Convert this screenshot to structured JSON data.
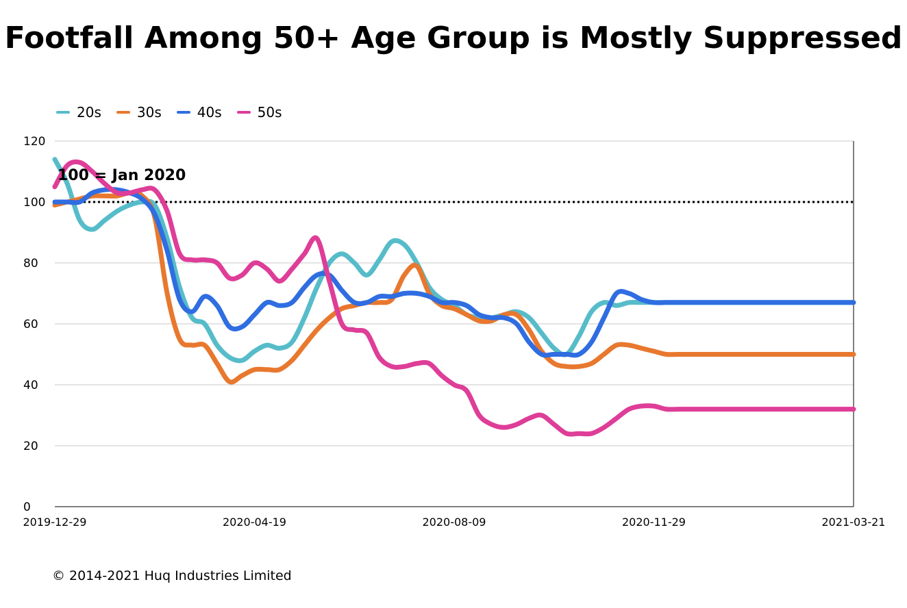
{
  "copyright": "© 2014-2021 Huq Industries Limited",
  "chart_data": {
    "type": "line",
    "title": "Footfall Among 50+ Age Group is Mostly Suppressed",
    "annotation": "100 = Jan 2020",
    "reference_line": 100,
    "ylim": [
      0,
      120
    ],
    "yticks": [
      0,
      20,
      40,
      60,
      80,
      100,
      120
    ],
    "xlim": [
      "2019-12-29",
      "2021-03-21"
    ],
    "xticks": [
      "2019-12-29",
      "2020-04-19",
      "2020-08-09",
      "2020-11-29",
      "2021-03-21"
    ],
    "grid": true,
    "legend_position": "top-left",
    "x": [
      "2019-12-29",
      "2020-01-05",
      "2020-01-12",
      "2020-01-19",
      "2020-01-26",
      "2020-02-02",
      "2020-02-09",
      "2020-02-16",
      "2020-02-23",
      "2020-03-01",
      "2020-03-08",
      "2020-03-15",
      "2020-03-22",
      "2020-03-29",
      "2020-04-05",
      "2020-04-12",
      "2020-04-19",
      "2020-04-26",
      "2020-05-03",
      "2020-05-10",
      "2020-05-17",
      "2020-05-24",
      "2020-05-31",
      "2020-06-07",
      "2020-06-14",
      "2020-06-21",
      "2020-06-28",
      "2020-07-05",
      "2020-07-12",
      "2020-07-19",
      "2020-07-26",
      "2020-08-02",
      "2020-08-09",
      "2020-08-16",
      "2020-08-23",
      "2020-08-30",
      "2020-09-06",
      "2020-09-13",
      "2020-09-20",
      "2020-09-27",
      "2020-10-04",
      "2020-10-11",
      "2020-10-18",
      "2020-10-25",
      "2020-11-01",
      "2020-11-08",
      "2020-11-15",
      "2020-11-22",
      "2020-11-29",
      "2020-12-06",
      "2020-12-13",
      "2020-12-20",
      "2020-12-27",
      "2021-01-03",
      "2021-01-10",
      "2021-01-17",
      "2021-01-24",
      "2021-01-31",
      "2021-02-07",
      "2021-02-14",
      "2021-02-21",
      "2021-02-28",
      "2021-03-07",
      "2021-03-14",
      "2021-03-21"
    ],
    "series": [
      {
        "name": "20s",
        "color": "#57bcc9",
        "values": [
          114,
          106,
          94,
          91,
          94,
          97,
          99,
          100,
          99,
          88,
          72,
          62,
          60,
          53,
          49,
          48,
          51,
          53,
          52,
          54,
          62,
          72,
          80,
          83,
          80,
          76,
          81,
          87,
          86,
          80,
          72,
          68,
          66,
          63,
          62,
          62,
          63,
          64,
          62,
          57,
          52,
          50,
          56,
          64,
          67,
          66,
          67,
          67,
          67,
          67,
          67,
          67,
          67,
          67,
          67,
          67,
          67,
          67,
          67,
          67,
          67,
          67,
          67,
          67,
          67
        ]
      },
      {
        "name": "30s",
        "color": "#e8782e",
        "values": [
          99,
          100,
          101,
          102,
          102,
          102,
          103,
          102,
          95,
          70,
          55,
          53,
          53,
          47,
          41,
          43,
          45,
          45,
          45,
          48,
          53,
          58,
          62,
          65,
          66,
          67,
          67,
          68,
          76,
          79,
          70,
          66,
          65,
          63,
          61,
          61,
          63,
          63,
          58,
          51,
          47,
          46,
          46,
          47,
          50,
          53,
          53,
          52,
          51,
          50,
          50,
          50,
          50,
          50,
          50,
          50,
          50,
          50,
          50,
          50,
          50,
          50,
          50,
          50,
          50
        ]
      },
      {
        "name": "40s",
        "color": "#2f6de1",
        "values": [
          100,
          100,
          100,
          103,
          104,
          104,
          103,
          101,
          96,
          84,
          68,
          64,
          69,
          66,
          59,
          59,
          63,
          67,
          66,
          67,
          72,
          76,
          76,
          71,
          67,
          67,
          69,
          69,
          70,
          70,
          69,
          67,
          67,
          66,
          63,
          62,
          62,
          60,
          54,
          50,
          50,
          50,
          50,
          54,
          62,
          70,
          70,
          68,
          67,
          67,
          67,
          67,
          67,
          67,
          67,
          67,
          67,
          67,
          67,
          67,
          67,
          67,
          67,
          67,
          67
        ]
      },
      {
        "name": "50s",
        "color": "#de3d98",
        "values": [
          105,
          112,
          113,
          110,
          106,
          103,
          103,
          104,
          104,
          97,
          83,
          81,
          81,
          80,
          75,
          76,
          80,
          78,
          74,
          78,
          83,
          88,
          74,
          60,
          58,
          57,
          49,
          46,
          46,
          47,
          47,
          43,
          40,
          38,
          30,
          27,
          26,
          27,
          29,
          30,
          27,
          24,
          24,
          24,
          26,
          29,
          32,
          33,
          33,
          32,
          32,
          32,
          32,
          32,
          32,
          32,
          32,
          32,
          32,
          32,
          32,
          32,
          32,
          32,
          32
        ]
      }
    ]
  }
}
